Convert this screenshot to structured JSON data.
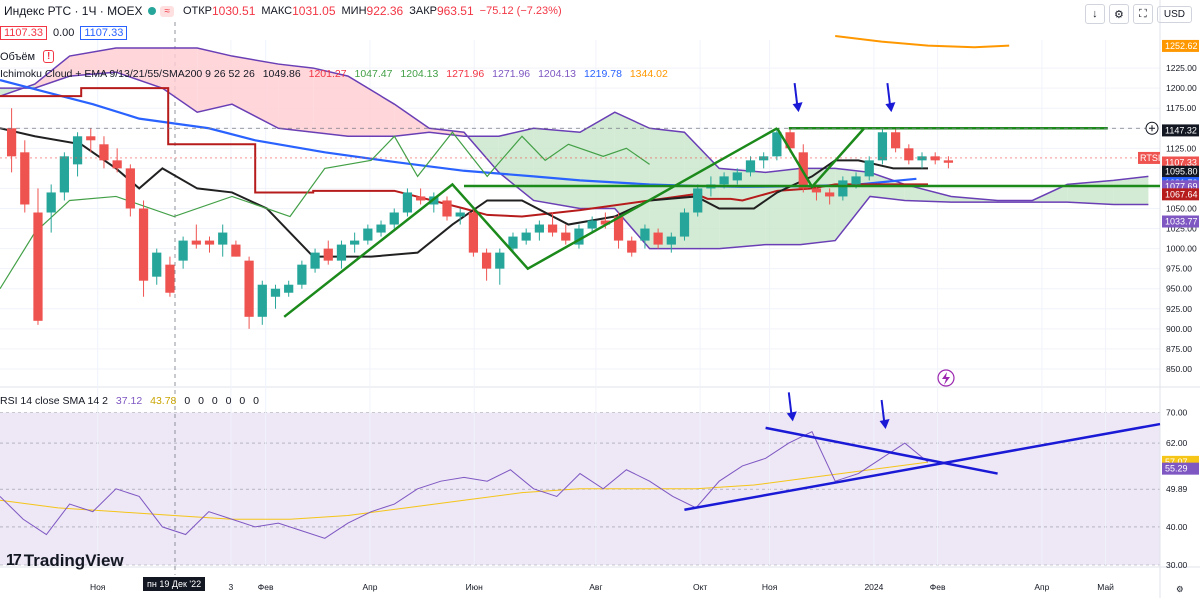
{
  "header": {
    "symbol": "Индекс РТС · 1Ч · MOEX",
    "open_label": "ОТКР",
    "open": "1030.51",
    "high_label": "МАКС",
    "high": "1031.05",
    "low_label": "МИН",
    "low": "922.36",
    "close_label": "ЗАКР",
    "close": "963.51",
    "change": "−75.12 (−7.23%)"
  },
  "quote": {
    "sell": "1107.33",
    "spread": "0.00",
    "buy": "1107.33"
  },
  "volume_label": "Объём",
  "volume_warning": "!",
  "currency": "USD",
  "ichimoku_legend": {
    "name": "Ichimoku Cloud + EMA 9/13/21/55/SMA200 9 26 52 26",
    "values": [
      "1049.86",
      "1201.27",
      "1047.47",
      "1204.13",
      "1271.96",
      "1271.96",
      "1204.13",
      "1219.78",
      "1344.02"
    ],
    "colors": [
      "#131722",
      "#f23645",
      "#43a047",
      "#43a047",
      "#f23645",
      "#7e57c2",
      "#7e57c2",
      "#2962ff",
      "#ff9800"
    ]
  },
  "rsi_legend": {
    "name": "RSI 14 close SMA 14 2",
    "values": [
      "37.12",
      "43.78",
      "0",
      "0",
      "0",
      "0",
      "0",
      "0"
    ],
    "colors": [
      "#7e57c2",
      "#f5c518",
      "#131722",
      "#131722",
      "#131722",
      "#131722",
      "#131722",
      "#131722"
    ]
  },
  "brand": "TradingView",
  "crosshair_date": "пн 19 Дек '22",
  "colors": {
    "up": "#26a69a",
    "down": "#ef5350",
    "cloud_bull": "#c8e6c9",
    "cloud_bear": "#ffcdd2",
    "cloud_edge": "#6a3fb5",
    "kijun": "#b71c1c",
    "tenkan": "#212121",
    "chikou": "#43a047",
    "ema": "#2962ff",
    "sma200": "#ff9800",
    "drawing": "#1b8a1b",
    "rsi_trend": "#1a1ad6",
    "rsi_bg": "#ede7f6"
  },
  "chart_data": [
    {
      "type": "candlestick",
      "title": "Индекс РТС · 1Ч · MOEX",
      "ylim": [
        830,
        1260
      ],
      "y_ticks": [
        850,
        875,
        900,
        925,
        950,
        975,
        1000,
        1025,
        1050,
        1075,
        1100,
        1125,
        1150,
        1175,
        1200,
        1225
      ],
      "x_tick_labels": [
        "Ноя",
        "3",
        "Фев",
        "Апр",
        "Июн",
        "Авг",
        "Окт",
        "Ноя",
        "2024",
        "Фев",
        "Апр",
        "Май"
      ],
      "candles": [
        {
          "o": 1150,
          "h": 1175,
          "l": 1095,
          "c": 1115
        },
        {
          "o": 1120,
          "h": 1135,
          "l": 1045,
          "c": 1055
        },
        {
          "o": 1045,
          "h": 1075,
          "l": 905,
          "c": 910
        },
        {
          "o": 1045,
          "h": 1080,
          "l": 1020,
          "c": 1070
        },
        {
          "o": 1070,
          "h": 1120,
          "l": 1060,
          "c": 1115
        },
        {
          "o": 1105,
          "h": 1145,
          "l": 1090,
          "c": 1140
        },
        {
          "o": 1140,
          "h": 1150,
          "l": 1120,
          "c": 1135
        },
        {
          "o": 1130,
          "h": 1140,
          "l": 1100,
          "c": 1110
        },
        {
          "o": 1110,
          "h": 1125,
          "l": 1095,
          "c": 1100
        },
        {
          "o": 1100,
          "h": 1105,
          "l": 1040,
          "c": 1050
        },
        {
          "o": 1050,
          "h": 1060,
          "l": 940,
          "c": 960
        },
        {
          "o": 965,
          "h": 1000,
          "l": 955,
          "c": 995
        },
        {
          "o": 980,
          "h": 990,
          "l": 940,
          "c": 945
        },
        {
          "o": 985,
          "h": 1015,
          "l": 975,
          "c": 1010
        },
        {
          "o": 1010,
          "h": 1030,
          "l": 1000,
          "c": 1005
        },
        {
          "o": 1010,
          "h": 1015,
          "l": 995,
          "c": 1005
        },
        {
          "o": 1005,
          "h": 1030,
          "l": 990,
          "c": 1020
        },
        {
          "o": 1005,
          "h": 1010,
          "l": 990,
          "c": 990
        },
        {
          "o": 985,
          "h": 990,
          "l": 900,
          "c": 915
        },
        {
          "o": 915,
          "h": 960,
          "l": 905,
          "c": 955
        },
        {
          "o": 940,
          "h": 955,
          "l": 925,
          "c": 950
        },
        {
          "o": 945,
          "h": 960,
          "l": 940,
          "c": 955
        },
        {
          "o": 955,
          "h": 985,
          "l": 950,
          "c": 980
        },
        {
          "o": 975,
          "h": 1000,
          "l": 970,
          "c": 995
        },
        {
          "o": 1000,
          "h": 1010,
          "l": 980,
          "c": 985
        },
        {
          "o": 985,
          "h": 1010,
          "l": 975,
          "c": 1005
        },
        {
          "o": 1005,
          "h": 1020,
          "l": 995,
          "c": 1010
        },
        {
          "o": 1010,
          "h": 1030,
          "l": 1005,
          "c": 1025
        },
        {
          "o": 1020,
          "h": 1035,
          "l": 1015,
          "c": 1030
        },
        {
          "o": 1030,
          "h": 1050,
          "l": 1025,
          "c": 1045
        },
        {
          "o": 1045,
          "h": 1075,
          "l": 1040,
          "c": 1070
        },
        {
          "o": 1065,
          "h": 1075,
          "l": 1055,
          "c": 1060
        },
        {
          "o": 1055,
          "h": 1070,
          "l": 1045,
          "c": 1065
        },
        {
          "o": 1060,
          "h": 1065,
          "l": 1035,
          "c": 1040
        },
        {
          "o": 1040,
          "h": 1050,
          "l": 1030,
          "c": 1045
        },
        {
          "o": 1045,
          "h": 1050,
          "l": 990,
          "c": 995
        },
        {
          "o": 995,
          "h": 1000,
          "l": 960,
          "c": 975
        },
        {
          "o": 975,
          "h": 1000,
          "l": 955,
          "c": 995
        },
        {
          "o": 1000,
          "h": 1020,
          "l": 995,
          "c": 1015
        },
        {
          "o": 1010,
          "h": 1025,
          "l": 1005,
          "c": 1020
        },
        {
          "o": 1020,
          "h": 1035,
          "l": 1010,
          "c": 1030
        },
        {
          "o": 1030,
          "h": 1045,
          "l": 1015,
          "c": 1020
        },
        {
          "o": 1020,
          "h": 1030,
          "l": 1005,
          "c": 1010
        },
        {
          "o": 1005,
          "h": 1030,
          "l": 1000,
          "c": 1025
        },
        {
          "o": 1025,
          "h": 1040,
          "l": 1020,
          "c": 1035
        },
        {
          "o": 1035,
          "h": 1045,
          "l": 1025,
          "c": 1030
        },
        {
          "o": 1040,
          "h": 1045,
          "l": 1000,
          "c": 1010
        },
        {
          "o": 1010,
          "h": 1015,
          "l": 990,
          "c": 995
        },
        {
          "o": 1010,
          "h": 1030,
          "l": 1000,
          "c": 1025
        },
        {
          "o": 1020,
          "h": 1025,
          "l": 1000,
          "c": 1005
        },
        {
          "o": 1005,
          "h": 1020,
          "l": 995,
          "c": 1015
        },
        {
          "o": 1015,
          "h": 1050,
          "l": 1010,
          "c": 1045
        },
        {
          "o": 1045,
          "h": 1080,
          "l": 1040,
          "c": 1075
        },
        {
          "o": 1075,
          "h": 1090,
          "l": 1065,
          "c": 1080
        },
        {
          "o": 1080,
          "h": 1095,
          "l": 1075,
          "c": 1090
        },
        {
          "o": 1085,
          "h": 1100,
          "l": 1080,
          "c": 1095
        },
        {
          "o": 1095,
          "h": 1115,
          "l": 1090,
          "c": 1110
        },
        {
          "o": 1110,
          "h": 1120,
          "l": 1100,
          "c": 1115
        },
        {
          "o": 1115,
          "h": 1150,
          "l": 1110,
          "c": 1145
        },
        {
          "o": 1145,
          "h": 1150,
          "l": 1120,
          "c": 1125
        },
        {
          "o": 1120,
          "h": 1130,
          "l": 1070,
          "c": 1075
        },
        {
          "o": 1075,
          "h": 1080,
          "l": 1060,
          "c": 1070
        },
        {
          "o": 1070,
          "h": 1075,
          "l": 1055,
          "c": 1065
        },
        {
          "o": 1065,
          "h": 1090,
          "l": 1060,
          "c": 1085
        },
        {
          "o": 1080,
          "h": 1095,
          "l": 1075,
          "c": 1090
        },
        {
          "o": 1090,
          "h": 1115,
          "l": 1085,
          "c": 1110
        },
        {
          "o": 1110,
          "h": 1150,
          "l": 1105,
          "c": 1145
        },
        {
          "o": 1145,
          "h": 1150,
          "l": 1120,
          "c": 1125
        },
        {
          "o": 1125,
          "h": 1130,
          "l": 1105,
          "c": 1110
        },
        {
          "o": 1110,
          "h": 1120,
          "l": 1100,
          "c": 1115
        },
        {
          "o": 1115,
          "h": 1120,
          "l": 1105,
          "c": 1110
        },
        {
          "o": 1110,
          "h": 1115,
          "l": 1100,
          "c": 1107
        }
      ],
      "overlays": {
        "sma200": {
          "x_frac": [
            0.72,
            0.76,
            0.8,
            0.84,
            0.87
          ],
          "values": [
            1265,
            1258,
            1253,
            1251,
            1253
          ]
        },
        "ema": {
          "x_frac": [
            0.0,
            0.04,
            0.08,
            0.12,
            0.18,
            0.22,
            0.28,
            0.34,
            0.4,
            0.46,
            0.5,
            0.56,
            0.6,
            0.64,
            0.7,
            0.74,
            0.79
          ],
          "values": [
            1210,
            1195,
            1180,
            1162,
            1150,
            1135,
            1120,
            1108,
            1097,
            1090,
            1085,
            1080,
            1078,
            1077,
            1078,
            1080,
            1087
          ]
        },
        "kijun": {
          "x_frac": [
            0.0,
            0.07,
            0.07,
            0.145,
            0.145,
            0.22,
            0.22,
            0.27,
            0.27,
            0.34,
            0.4,
            0.42,
            0.45,
            0.5,
            0.56,
            0.6,
            0.61,
            0.63,
            0.64,
            0.67,
            0.7,
            0.72,
            0.77,
            0.8
          ],
          "values": [
            1190,
            1190,
            1200,
            1200,
            1130,
            1130,
            1070,
            1070,
            1072,
            1072,
            1050,
            1042,
            1040,
            1048,
            1060,
            1068,
            1062,
            1062,
            1060,
            1072,
            1075,
            1080,
            1080,
            1080
          ]
        },
        "tenkan": {
          "x_frac": [
            0.0,
            0.03,
            0.07,
            0.1,
            0.12,
            0.14,
            0.17,
            0.2,
            0.23,
            0.25,
            0.27,
            0.3,
            0.32,
            0.36,
            0.39,
            0.42,
            0.45,
            0.49,
            0.53,
            0.56,
            0.6,
            0.62,
            0.65,
            0.67,
            0.7,
            0.72,
            0.74,
            0.77,
            0.8
          ],
          "values": [
            1150,
            1140,
            1130,
            1100,
            1075,
            1100,
            1075,
            1070,
            1050,
            1020,
            990,
            990,
            990,
            995,
            1030,
            1060,
            1060,
            1030,
            1040,
            1060,
            1065,
            1050,
            1050,
            1070,
            1090,
            1110,
            1110,
            1100,
            1100
          ]
        },
        "chikou": {
          "x_frac": [
            0.0,
            0.03,
            0.06,
            0.1,
            0.15,
            0.2,
            0.25,
            0.28,
            0.32,
            0.34,
            0.36,
            0.39,
            0.42,
            0.45,
            0.47,
            0.49,
            0.52,
            0.54,
            0.56
          ],
          "values": [
            950,
            1020,
            1060,
            1065,
            1040,
            1065,
            1040,
            1100,
            1110,
            1140,
            1090,
            1145,
            1090,
            1140,
            1110,
            1130,
            1115,
            1125,
            1105
          ]
        }
      },
      "cloud": {
        "x_frac": [
          0.0,
          0.03,
          0.06,
          0.1,
          0.14,
          0.17,
          0.2,
          0.24,
          0.27,
          0.3,
          0.34,
          0.37,
          0.4,
          0.43,
          0.46,
          0.5,
          0.53,
          0.56,
          0.59,
          0.62,
          0.66,
          0.69,
          0.72,
          0.75,
          0.78,
          0.82,
          0.86,
          0.89,
          0.92,
          0.96,
          0.99
        ],
        "span_a": [
          1200,
          1200,
          1215,
          1220,
          1200,
          1170,
          1180,
          1150,
          1145,
          1140,
          1140,
          1145,
          1140,
          1140,
          1150,
          1145,
          1170,
          1150,
          1145,
          1100,
          1095,
          1100,
          1100,
          1095,
          1080,
          1065,
          1060,
          1060,
          1080,
          1085,
          1090
        ],
        "span_b": [
          1190,
          1205,
          1240,
          1250,
          1250,
          1250,
          1240,
          1230,
          1225,
          1215,
          1180,
          1150,
          1145,
          1095,
          1060,
          1050,
          1050,
          1000,
          1000,
          1000,
          1005,
          1005,
          1010,
          1065,
          1060,
          1058,
          1058,
          1058,
          1058,
          1055,
          1055
        ]
      },
      "drawings": {
        "horizontal_levels": [
          1150,
          1078
        ],
        "dashed_levels": [
          1150,
          1113
        ],
        "wedge_up": [
          [
            0.245,
            915
          ],
          [
            0.39,
            1080
          ],
          [
            0.455,
            975
          ],
          [
            0.67,
            1150
          ]
        ],
        "wedge_m": [
          [
            0.67,
            1150
          ],
          [
            0.7,
            1077
          ],
          [
            0.745,
            1150
          ]
        ]
      },
      "price_labels": [
        {
          "value": 1252.62,
          "text": "1252.62",
          "color": "#ff9800"
        },
        {
          "value": 1147.32,
          "text": "1147.32",
          "color": "#131722"
        },
        {
          "value": 1107.33,
          "text": "1107.33",
          "color": "#ef5350"
        },
        {
          "value": 1095.8,
          "text": "1095.80",
          "color": "#131722"
        },
        {
          "value": 1081.72,
          "text": "1081.72",
          "color": "#2962ff"
        },
        {
          "value": 1077.69,
          "text": "1077.69",
          "color": "#7e57c2"
        },
        {
          "value": 1067.64,
          "text": "1067.64",
          "color": "#b71c1c"
        },
        {
          "value": 1033.77,
          "text": "1033.77",
          "color": "#7e57c2"
        }
      ],
      "ticker_tag": "RTSI"
    },
    {
      "type": "line",
      "title": "RSI 14 close SMA 14 2",
      "ylim": [
        30,
        72
      ],
      "y_ticks": [
        30.0,
        40.0,
        49.89,
        62.0,
        70.0
      ],
      "rsi": {
        "x_frac": [
          0.0,
          0.02,
          0.04,
          0.06,
          0.08,
          0.1,
          0.12,
          0.14,
          0.16,
          0.18,
          0.2,
          0.22,
          0.24,
          0.26,
          0.28,
          0.3,
          0.32,
          0.34,
          0.36,
          0.38,
          0.4,
          0.42,
          0.44,
          0.46,
          0.48,
          0.5,
          0.52,
          0.54,
          0.56,
          0.58,
          0.6,
          0.62,
          0.64,
          0.66,
          0.68,
          0.7,
          0.72,
          0.74,
          0.76,
          0.78,
          0.8
        ],
        "values": [
          48,
          42,
          38,
          46,
          44,
          50,
          48,
          40,
          38,
          44,
          42,
          40,
          41,
          39,
          37,
          41,
          44,
          46,
          50,
          52,
          53,
          52,
          55,
          50,
          48,
          54,
          50,
          55,
          52,
          48,
          45,
          52,
          56,
          58,
          62,
          65,
          52,
          54,
          58,
          62,
          57
        ]
      },
      "sma": {
        "x_frac": [
          0.0,
          0.05,
          0.1,
          0.15,
          0.2,
          0.25,
          0.3,
          0.35,
          0.4,
          0.45,
          0.5,
          0.55,
          0.6,
          0.65,
          0.7,
          0.75,
          0.8
        ],
        "values": [
          47,
          45,
          44,
          43,
          42,
          42,
          43,
          45,
          47,
          49,
          50,
          50,
          50,
          51,
          53,
          55,
          57
        ]
      },
      "trendlines": [
        {
          "from": [
            0.59,
            44.5
          ],
          "to": [
            1.0,
            67
          ]
        },
        {
          "from": [
            0.66,
            66
          ],
          "to": [
            0.86,
            54
          ]
        }
      ],
      "value_labels": [
        {
          "value": 57.07,
          "text": "57.07",
          "color": "#f5c518"
        },
        {
          "value": 55.29,
          "text": "55.29",
          "color": "#7e57c2"
        }
      ]
    }
  ]
}
